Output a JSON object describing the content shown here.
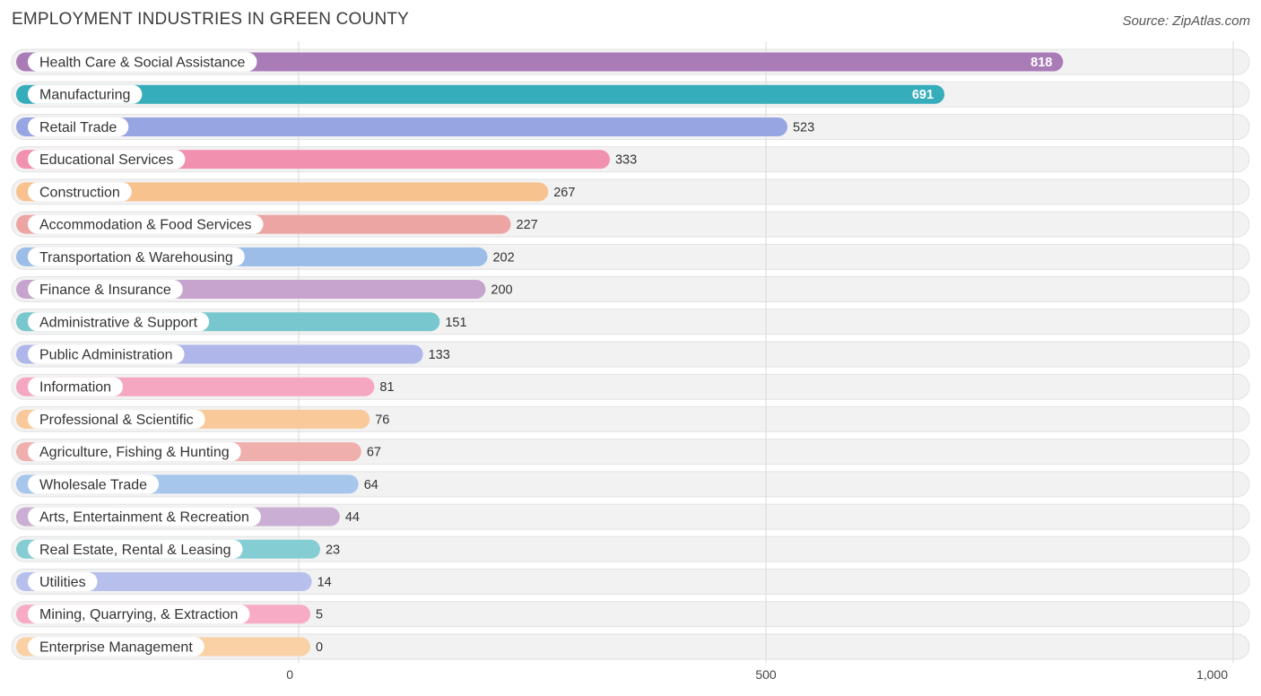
{
  "chart_data": {
    "type": "bar",
    "orientation": "horizontal",
    "title": "EMPLOYMENT INDUSTRIES IN GREEN COUNTY",
    "source": "Source: ZipAtlas.com",
    "xlim": [
      0,
      1000
    ],
    "ticks": [
      {
        "value": 0,
        "label": "0"
      },
      {
        "value": 500,
        "label": "500"
      },
      {
        "value": 1000,
        "label": "1,000"
      }
    ],
    "grid": true,
    "bars": [
      {
        "category": "Health Care & Social Assistance",
        "value": 818,
        "label": "818",
        "color": "#a97cb8"
      },
      {
        "category": "Manufacturing",
        "value": 691,
        "label": "691",
        "color": "#35adbb"
      },
      {
        "category": "Retail Trade",
        "value": 523,
        "label": "523",
        "color": "#97a5e3"
      },
      {
        "category": "Educational Services",
        "value": 333,
        "label": "333",
        "color": "#f290b0"
      },
      {
        "category": "Construction",
        "value": 267,
        "label": "267",
        "color": "#f8c28e"
      },
      {
        "category": "Accommodation & Food Services",
        "value": 227,
        "label": "227",
        "color": "#eda5a3"
      },
      {
        "category": "Transportation & Warehousing",
        "value": 202,
        "label": "202",
        "color": "#9bbde8"
      },
      {
        "category": "Finance & Insurance",
        "value": 200,
        "label": "200",
        "color": "#c6a4cd"
      },
      {
        "category": "Administrative & Support",
        "value": 151,
        "label": "151",
        "color": "#79c7ce"
      },
      {
        "category": "Public Administration",
        "value": 133,
        "label": "133",
        "color": "#afb7ea"
      },
      {
        "category": "Information",
        "value": 81,
        "label": "81",
        "color": "#f5a6c0"
      },
      {
        "category": "Professional & Scientific",
        "value": 76,
        "label": "76",
        "color": "#f9c99a"
      },
      {
        "category": "Agriculture, Fishing & Hunting",
        "value": 67,
        "label": "67",
        "color": "#efb0ad"
      },
      {
        "category": "Wholesale Trade",
        "value": 64,
        "label": "64",
        "color": "#a6c6ec"
      },
      {
        "category": "Arts, Entertainment & Recreation",
        "value": 44,
        "label": "44",
        "color": "#cbaed3"
      },
      {
        "category": "Real Estate, Rental & Leasing",
        "value": 23,
        "label": "23",
        "color": "#83cdd3"
      },
      {
        "category": "Utilities",
        "value": 14,
        "label": "14",
        "color": "#b7bfec"
      },
      {
        "category": "Mining, Quarrying, & Extraction",
        "value": 5,
        "label": "5",
        "color": "#f7abc4"
      },
      {
        "category": "Enterprise Management",
        "value": 0,
        "label": "0",
        "color": "#fad0a5"
      }
    ]
  }
}
